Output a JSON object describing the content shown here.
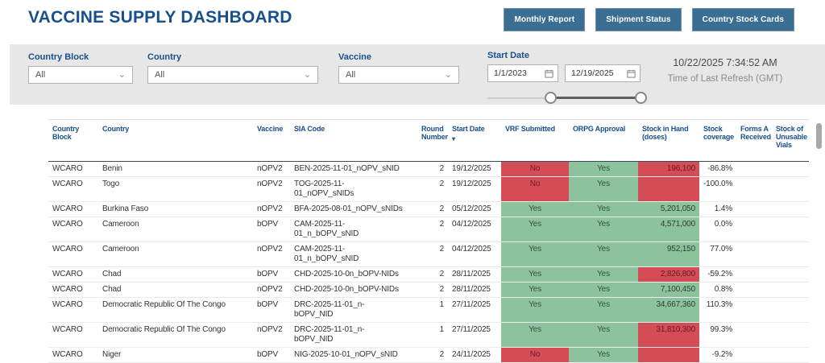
{
  "colors": {
    "accent_blue": "#17508d",
    "title_blue": "#1a5c9e",
    "button_blue": "#3b6e93",
    "red": "#d44d56",
    "green": "#8cc39c"
  },
  "header": {
    "title": "VACCINE SUPPLY DASHBOARD",
    "buttons": [
      {
        "label": "Monthly Report"
      },
      {
        "label": "Shipment Status"
      },
      {
        "label": "Country Stock Cards"
      }
    ]
  },
  "filters": {
    "country_block": {
      "label": "Country Block",
      "value": "All"
    },
    "country": {
      "label": "Country",
      "value": "All"
    },
    "vaccine": {
      "label": "Vaccine",
      "value": "All"
    },
    "start_date": {
      "label": "Start Date",
      "from": "1/1/2023",
      "to": "12/19/2025"
    }
  },
  "refresh": {
    "time": "10/22/2025 7:34:52 AM",
    "caption": "Time of Last Refresh (GMT)"
  },
  "table": {
    "columns": [
      "Country\nBlock",
      "Country",
      "Vaccine",
      "SIA Code",
      "Round\nNumber",
      "Start Date",
      "VRF Submitted",
      "ORPG Approval",
      "Stock in Hand\n(doses)",
      "Stock\ncoverage",
      "Forms A\nReceived",
      "Stock of\nUnusable\nVials"
    ],
    "sort": {
      "column": "Start Date",
      "direction": "desc"
    },
    "rows": [
      {
        "block": "WCARO",
        "country": "Benin",
        "vaccine": "nOPV2",
        "sia": "BEN-2025-11-01_nOPV_sNID",
        "round": "2",
        "date": "19/12/2025",
        "vrf": "No",
        "vrf_state": "red",
        "orpg": "Yes",
        "orpg_state": "green",
        "stock": "196,100",
        "stock_state": "red",
        "coverage": "-86.8%",
        "forms_a": "",
        "unusable": ""
      },
      {
        "block": "WCARO",
        "country": "Togo",
        "vaccine": "nOPV2",
        "sia": "TOG-2025-11-\n01_nOPV_sNIDs",
        "round": "2",
        "date": "19/12/2025",
        "vrf": "No",
        "vrf_state": "red",
        "orpg": "Yes",
        "orpg_state": "green",
        "stock": "",
        "stock_state": "red",
        "coverage": "-100.0%",
        "forms_a": "",
        "unusable": ""
      },
      {
        "block": "WCARO",
        "country": "Burkina Faso",
        "vaccine": "nOPV2",
        "sia": "BFA-2025-08-01_nOPV_sNIDs",
        "round": "2",
        "date": "05/12/2025",
        "vrf": "Yes",
        "vrf_state": "green",
        "orpg": "Yes",
        "orpg_state": "green",
        "stock": "5,201,050",
        "stock_state": "green",
        "coverage": "1.4%",
        "forms_a": "",
        "unusable": ""
      },
      {
        "block": "WCARO",
        "country": "Cameroon",
        "vaccine": "bOPV",
        "sia": "CAM-2025-11-\n01_n_bOPV_sNID",
        "round": "2",
        "date": "04/12/2025",
        "vrf": "Yes",
        "vrf_state": "green",
        "orpg": "Yes",
        "orpg_state": "green",
        "stock": "4,571,000",
        "stock_state": "green",
        "coverage": "0.0%",
        "forms_a": "",
        "unusable": ""
      },
      {
        "block": "WCARO",
        "country": "Cameroon",
        "vaccine": "nOPV2",
        "sia": "CAM-2025-11-\n01_n_bOPV_sNID",
        "round": "2",
        "date": "04/12/2025",
        "vrf": "Yes",
        "vrf_state": "green",
        "orpg": "Yes",
        "orpg_state": "green",
        "stock": "952,150",
        "stock_state": "green",
        "coverage": "77.0%",
        "forms_a": "",
        "unusable": ""
      },
      {
        "block": "WCARO",
        "country": "Chad",
        "vaccine": "bOPV",
        "sia": "CHD-2025-10-0n_bOPV-NIDs",
        "round": "2",
        "date": "28/11/2025",
        "vrf": "Yes",
        "vrf_state": "green",
        "orpg": "Yes",
        "orpg_state": "green",
        "stock": "2,826,800",
        "stock_state": "red",
        "coverage": "-59.2%",
        "forms_a": "",
        "unusable": ""
      },
      {
        "block": "WCARO",
        "country": "Chad",
        "vaccine": "nOPV2",
        "sia": "CHD-2025-10-0n_bOPV-NIDs",
        "round": "2",
        "date": "28/11/2025",
        "vrf": "Yes",
        "vrf_state": "green",
        "orpg": "Yes",
        "orpg_state": "green",
        "stock": "7,100,450",
        "stock_state": "green",
        "coverage": "0.8%",
        "forms_a": "",
        "unusable": ""
      },
      {
        "block": "WCARO",
        "country": "Democratic Republic Of The Congo",
        "vaccine": "bOPV",
        "sia": "DRC-2025-11-01_n-\nbOPV_NID",
        "round": "1",
        "date": "27/11/2025",
        "vrf": "Yes",
        "vrf_state": "green",
        "orpg": "Yes",
        "orpg_state": "green",
        "stock": "34,667,360",
        "stock_state": "green",
        "coverage": "110.3%",
        "forms_a": "",
        "unusable": ""
      },
      {
        "block": "WCARO",
        "country": "Democratic Republic Of The Congo",
        "vaccine": "nOPV2",
        "sia": "DRC-2025-11-01_n-\nbOPV_NID",
        "round": "1",
        "date": "27/11/2025",
        "vrf": "Yes",
        "vrf_state": "green",
        "orpg": "Yes",
        "orpg_state": "green",
        "stock": "31,810,300",
        "stock_state": "red",
        "coverage": "99.3%",
        "forms_a": "",
        "unusable": ""
      },
      {
        "block": "WCARO",
        "country": "Niger",
        "vaccine": "bOPV",
        "sia": "NIG-2025-10-01_nOPV_sNID",
        "round": "2",
        "date": "24/11/2025",
        "vrf": "No",
        "vrf_state": "red",
        "orpg": "Yes",
        "orpg_state": "green",
        "stock": "",
        "stock_state": "red",
        "coverage": "-9.2%",
        "forms_a": "",
        "unusable": ""
      }
    ]
  }
}
